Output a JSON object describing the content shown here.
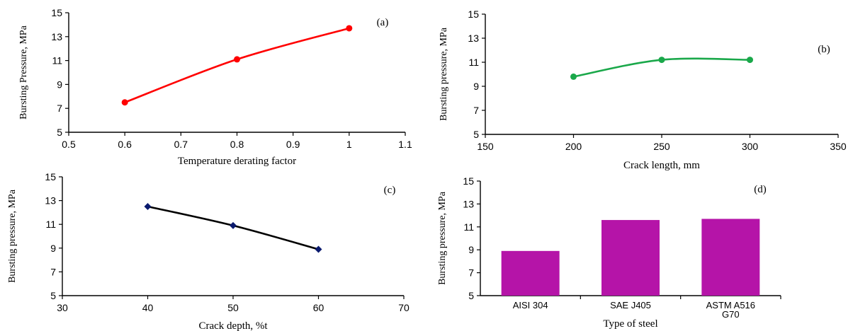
{
  "chart_data": [
    {
      "type": "line",
      "panel_label": "(a)",
      "xlabel": "Temperature derating factor",
      "ylabel": "Bursting Pressure, MPa",
      "x": [
        0.6,
        0.8,
        1.0
      ],
      "series": [
        {
          "values": [
            7.5,
            11.1,
            13.7
          ]
        }
      ],
      "xlim": [
        0.5,
        1.1
      ],
      "ylim": [
        5,
        15
      ],
      "xticks": [
        0.5,
        0.6,
        0.7,
        0.8,
        0.9,
        1,
        1.1
      ],
      "yticks": [
        5,
        7,
        9,
        11,
        13,
        15
      ],
      "color": "#ff0000",
      "marker": "circle"
    },
    {
      "type": "line",
      "panel_label": "(b)",
      "xlabel": "Crack length, mm",
      "ylabel": "Bursting pressure, MPa",
      "x": [
        200,
        250,
        300
      ],
      "series": [
        {
          "values": [
            9.8,
            11.2,
            11.2
          ]
        }
      ],
      "xlim": [
        150,
        350
      ],
      "ylim": [
        5,
        15
      ],
      "xticks": [
        150,
        200,
        250,
        300,
        350
      ],
      "yticks": [
        5,
        7,
        9,
        11,
        13,
        15
      ],
      "color": "#1aa84a",
      "marker": "circle"
    },
    {
      "type": "line",
      "panel_label": "(c)",
      "xlabel": "Crack depth, %t",
      "ylabel": "Bursting pressure, MPa",
      "x": [
        40,
        50,
        60
      ],
      "series": [
        {
          "values": [
            12.5,
            10.9,
            8.9
          ]
        }
      ],
      "xlim": [
        30,
        70
      ],
      "ylim": [
        5,
        15
      ],
      "xticks": [
        30,
        40,
        50,
        60,
        70
      ],
      "yticks": [
        5,
        7,
        9,
        11,
        13,
        15
      ],
      "color": "#000000",
      "marker_color": "#0a1a6e",
      "marker": "diamond"
    },
    {
      "type": "bar",
      "panel_label": "(d)",
      "xlabel": "Type of steel",
      "ylabel": "Bursting pressure, MPa",
      "categories": [
        "AISI 304",
        "SAE J405",
        "ASTM A516 G70"
      ],
      "values": [
        8.9,
        11.6,
        11.7
      ],
      "ylim": [
        5,
        15
      ],
      "yticks": [
        5,
        7,
        9,
        11,
        13,
        15
      ],
      "color": "#b514a8"
    }
  ]
}
